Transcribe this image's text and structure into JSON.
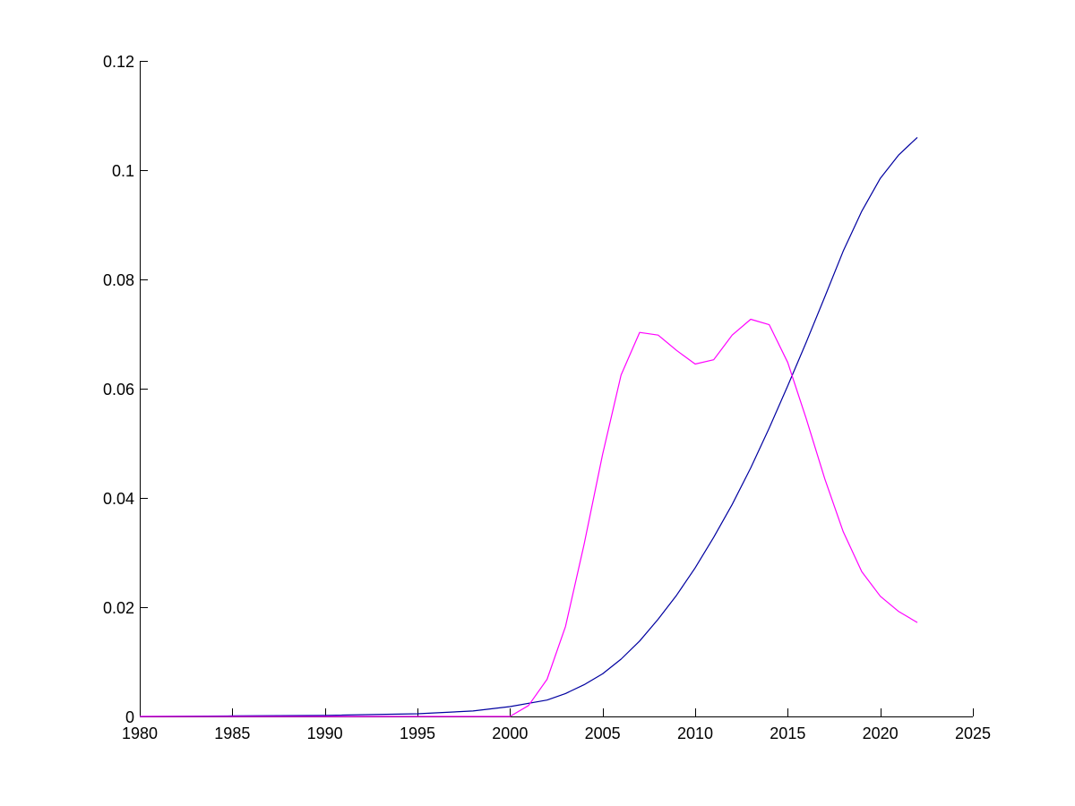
{
  "chart_data": {
    "type": "line",
    "title": "",
    "xlabel": "",
    "ylabel": "",
    "xlim": [
      1980,
      2025
    ],
    "ylim": [
      0,
      0.12
    ],
    "x_ticks": [
      1980,
      1985,
      1990,
      1995,
      2000,
      2005,
      2010,
      2015,
      2020,
      2025
    ],
    "x_tick_labels": [
      "1980",
      "1985",
      "1990",
      "1995",
      "2000",
      "2005",
      "2010",
      "2015",
      "2020",
      "2025"
    ],
    "y_ticks": [
      0,
      0.02,
      0.04,
      0.06,
      0.08,
      0.1,
      0.12
    ],
    "y_tick_labels": [
      "0",
      "0.02",
      "0.04",
      "0.06",
      "0.08",
      "0.1",
      "0.12"
    ],
    "grid": false,
    "legend": false,
    "series": [
      {
        "color": "#0000a0",
        "points": [
          [
            1980,
            0.0
          ],
          [
            1985,
            0.0001
          ],
          [
            1990,
            0.0002
          ],
          [
            1995,
            0.0005
          ],
          [
            1998,
            0.001
          ],
          [
            2000,
            0.0018
          ],
          [
            2002,
            0.003
          ],
          [
            2003,
            0.0042
          ],
          [
            2004,
            0.0058
          ],
          [
            2005,
            0.0078
          ],
          [
            2006,
            0.0105
          ],
          [
            2007,
            0.0138
          ],
          [
            2008,
            0.0178
          ],
          [
            2009,
            0.0222
          ],
          [
            2010,
            0.0272
          ],
          [
            2011,
            0.0328
          ],
          [
            2012,
            0.0388
          ],
          [
            2013,
            0.0455
          ],
          [
            2014,
            0.0528
          ],
          [
            2015,
            0.0605
          ],
          [
            2016,
            0.0685
          ],
          [
            2017,
            0.0768
          ],
          [
            2018,
            0.0852
          ],
          [
            2019,
            0.0925
          ],
          [
            2020,
            0.0985
          ],
          [
            2021,
            0.1028
          ],
          [
            2022,
            0.106
          ]
        ]
      },
      {
        "color": "#ff00ff",
        "points": [
          [
            1980,
            0.0
          ],
          [
            1985,
            0.0
          ],
          [
            1990,
            0.0
          ],
          [
            1995,
            0.0
          ],
          [
            2000,
            0.0
          ],
          [
            2001,
            0.002
          ],
          [
            2002,
            0.0068
          ],
          [
            2003,
            0.0165
          ],
          [
            2004,
            0.0315
          ],
          [
            2005,
            0.048
          ],
          [
            2006,
            0.0625
          ],
          [
            2007,
            0.0703
          ],
          [
            2008,
            0.0698
          ],
          [
            2009,
            0.067
          ],
          [
            2010,
            0.0645
          ],
          [
            2011,
            0.0653
          ],
          [
            2012,
            0.0698
          ],
          [
            2013,
            0.0727
          ],
          [
            2014,
            0.0717
          ],
          [
            2015,
            0.0648
          ],
          [
            2016,
            0.0545
          ],
          [
            2017,
            0.0435
          ],
          [
            2018,
            0.0338
          ],
          [
            2019,
            0.0265
          ],
          [
            2020,
            0.022
          ],
          [
            2021,
            0.0192
          ],
          [
            2022,
            0.0172
          ]
        ]
      }
    ]
  }
}
